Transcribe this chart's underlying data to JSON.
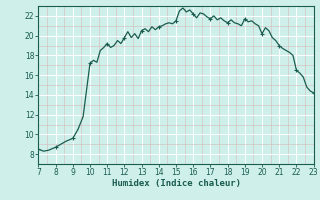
{
  "xlabel": "Humidex (Indice chaleur)",
  "x_min": 7,
  "x_max": 23,
  "y_min": 7,
  "y_max": 23,
  "yticks": [
    8,
    10,
    12,
    14,
    16,
    18,
    20,
    22
  ],
  "xticks": [
    7,
    8,
    9,
    10,
    11,
    12,
    13,
    14,
    15,
    16,
    17,
    18,
    19,
    20,
    21,
    22,
    23
  ],
  "bg_color": "#cff0ea",
  "grid_major_color": "#b8ddd7",
  "grid_major_white": "#ffffff",
  "line_color": "#1a5c50",
  "marker_color": "#1a5c50",
  "data_x": [
    7,
    7.3,
    7.6,
    8.0,
    8.3,
    8.6,
    9.0,
    9.3,
    9.6,
    10.0,
    10.2,
    10.4,
    10.6,
    10.8,
    11.0,
    11.2,
    11.4,
    11.6,
    11.8,
    12.0,
    12.2,
    12.4,
    12.6,
    12.8,
    13.0,
    13.2,
    13.4,
    13.6,
    13.8,
    14.0,
    14.2,
    14.4,
    14.6,
    14.8,
    15.0,
    15.2,
    15.4,
    15.6,
    15.8,
    16.0,
    16.2,
    16.4,
    16.6,
    16.8,
    17.0,
    17.2,
    17.4,
    17.6,
    17.8,
    18.0,
    18.2,
    18.4,
    18.6,
    18.8,
    19.0,
    19.2,
    19.4,
    19.6,
    19.8,
    20.0,
    20.2,
    20.4,
    20.6,
    20.8,
    21.0,
    21.2,
    21.4,
    21.6,
    21.8,
    22.0,
    22.2,
    22.4,
    22.6,
    22.8,
    23.0
  ],
  "data_y": [
    8.5,
    8.3,
    8.4,
    8.7,
    9.0,
    9.3,
    9.6,
    10.5,
    11.8,
    17.2,
    17.5,
    17.3,
    18.5,
    18.8,
    19.2,
    18.8,
    19.0,
    19.5,
    19.2,
    19.8,
    20.4,
    19.8,
    20.2,
    19.7,
    20.5,
    20.7,
    20.4,
    20.9,
    20.6,
    20.9,
    21.0,
    21.2,
    21.3,
    21.2,
    21.5,
    22.5,
    22.8,
    22.4,
    22.6,
    22.2,
    21.8,
    22.3,
    22.2,
    21.9,
    21.7,
    22.0,
    21.6,
    21.8,
    21.5,
    21.3,
    21.6,
    21.3,
    21.2,
    21.0,
    21.7,
    21.4,
    21.5,
    21.2,
    21.0,
    20.2,
    20.8,
    20.5,
    19.8,
    19.5,
    19.0,
    18.7,
    18.5,
    18.3,
    18.0,
    16.5,
    16.2,
    15.8,
    14.8,
    14.4,
    14.2
  ],
  "marker_x": [
    7,
    8,
    9,
    10,
    11,
    12,
    13,
    14,
    15,
    16,
    17,
    18,
    19,
    20,
    21,
    22,
    23
  ],
  "marker_y": [
    8.5,
    8.7,
    9.6,
    17.2,
    19.2,
    19.8,
    20.5,
    20.9,
    21.5,
    22.2,
    21.7,
    21.3,
    21.7,
    20.2,
    19.0,
    16.5,
    14.2
  ]
}
